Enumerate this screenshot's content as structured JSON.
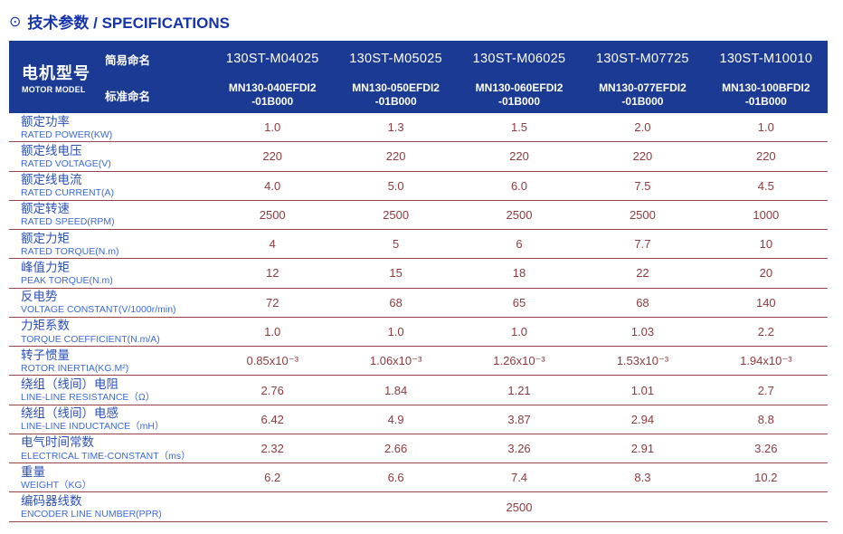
{
  "header": {
    "title_icon": "⊙",
    "title": "技术参数 / SPECIFICATIONS"
  },
  "colors": {
    "header_background": "#1b3a94",
    "title_blue": "#1634ab",
    "row_label_chinese": "#2b50b8",
    "row_label_english": "#3c6ad8",
    "value_text": "#8e3b3e",
    "row_divider": "#96454a",
    "header_text": "#ffffff"
  },
  "table": {
    "model_header": {
      "cn": "电机型号",
      "en": "MOTOR MODEL",
      "simple_label": "简易命名",
      "standard_label": "标准命名"
    },
    "columns": [
      {
        "simple": "130ST-M04025",
        "standard_line1": "MN130-040EFDI2",
        "standard_line2": "-01B000"
      },
      {
        "simple": "130ST-M05025",
        "standard_line1": "MN130-050EFDI2",
        "standard_line2": "-01B000"
      },
      {
        "simple": "130ST-M06025",
        "standard_line1": "MN130-060EFDI2",
        "standard_line2": "-01B000"
      },
      {
        "simple": "130ST-M07725",
        "standard_line1": "MN130-077EFDI2",
        "standard_line2": "-01B000"
      },
      {
        "simple": "130ST-M10010",
        "standard_line1": "MN130-100BFDI2",
        "standard_line2": "-01B000"
      }
    ],
    "rows": [
      {
        "cn": "额定功率",
        "en": "RATED POWER(KW)",
        "values": [
          "1.0",
          "1.3",
          "1.5",
          "2.0",
          "1.0"
        ]
      },
      {
        "cn": "额定线电压",
        "en": "RATED VOLTAGE(V)",
        "values": [
          "220",
          "220",
          "220",
          "220",
          "220"
        ]
      },
      {
        "cn": "额定线电流",
        "en": "RATED CURRENT(A)",
        "values": [
          "4.0",
          "5.0",
          "6.0",
          "7.5",
          "4.5"
        ]
      },
      {
        "cn": "额定转速",
        "en": "RATED SPEED(RPM)",
        "values": [
          "2500",
          "2500",
          "2500",
          "2500",
          "1000"
        ]
      },
      {
        "cn": "额定力矩",
        "en": "RATED TORQUE(N.m)",
        "values": [
          "4",
          "5",
          "6",
          "7.7",
          "10"
        ]
      },
      {
        "cn": "峰值力矩",
        "en": "PEAK TORQUE(N.m)",
        "values": [
          "12",
          "15",
          "18",
          "22",
          "20"
        ]
      },
      {
        "cn": "反电势",
        "en": "VOLTAGE CONSTANT(V/1000r/min)",
        "values": [
          "72",
          "68",
          "65",
          "68",
          "140"
        ]
      },
      {
        "cn": "力矩系数",
        "en": "TORQUE COEFFICIENT(N.m/A)",
        "values": [
          "1.0",
          "1.0",
          "1.0",
          "1.03",
          "2.2"
        ]
      },
      {
        "cn": "转子惯量",
        "en": "ROTOR INERTIA(KG.M²)",
        "values": [
          "0.85x10⁻³",
          "1.06x10⁻³",
          "1.26x10⁻³",
          "1.53x10⁻³",
          "1.94x10⁻³"
        ]
      },
      {
        "cn": "绕组（线间）电阻",
        "en": "LINE-LINE RESISTANCE（Ω）",
        "values": [
          "2.76",
          "1.84",
          "1.21",
          "1.01",
          "2.7"
        ]
      },
      {
        "cn": "绕组（线间）电感",
        "en": "LINE-LINE INDUCTANCE（mH）",
        "values": [
          "6.42",
          "4.9",
          "3.87",
          "2.94",
          "8.8"
        ]
      },
      {
        "cn": "电气时间常数",
        "en": "ELECTRICAL TIME-CONSTANT（ms）",
        "values": [
          "2.32",
          "2.66",
          "3.26",
          "2.91",
          "3.26"
        ]
      },
      {
        "cn": "重量",
        "en": "WEIGHT（KG）",
        "values": [
          "6.2",
          "6.6",
          "7.4",
          "8.3",
          "10.2"
        ]
      },
      {
        "cn": "编码器线数",
        "en": "ENCODER LINE NUMBER(PPR)",
        "merged_value": "2500"
      }
    ]
  }
}
